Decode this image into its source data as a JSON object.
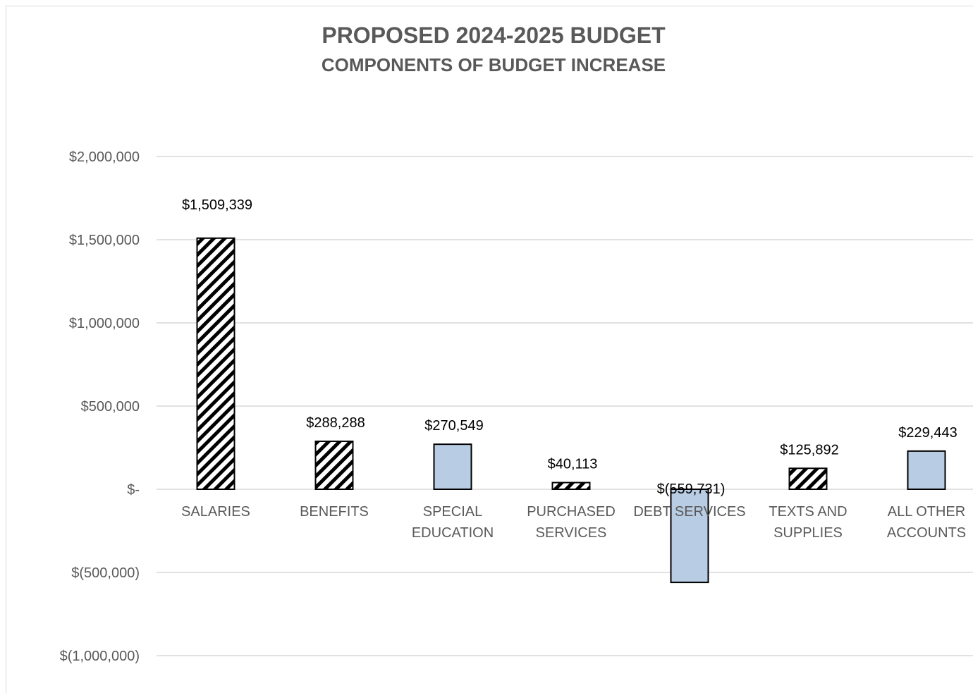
{
  "chart_data": {
    "type": "bar",
    "title": "PROPOSED 2024-2025 BUDGET",
    "subtitle": "COMPONENTS OF BUDGET INCREASE",
    "categories": [
      [
        "SALARIES"
      ],
      [
        "BENEFITS"
      ],
      [
        "SPECIAL",
        "EDUCATION"
      ],
      [
        "PURCHASED",
        "SERVICES"
      ],
      [
        "DEBT SERVICES"
      ],
      [
        "TEXTS AND",
        "SUPPLIES"
      ],
      [
        "ALL OTHER",
        "ACCOUNTS"
      ]
    ],
    "values": [
      1509339,
      288288,
      270549,
      40113,
      -559731,
      125892,
      229443
    ],
    "data_labels": [
      "$1,509,339",
      "$288,288",
      "$270,549",
      "$40,113",
      "$(559,731)",
      "$125,892",
      "$229,443"
    ],
    "fill_styles": [
      "hatched",
      "hatched",
      "solid",
      "hatched",
      "solid",
      "hatched",
      "solid"
    ],
    "y_ticks": [
      2000000,
      1500000,
      1000000,
      500000,
      0,
      -500000,
      -1000000
    ],
    "y_tick_labels": [
      "$2,000,000",
      "$1,500,000",
      "$1,000,000",
      "$500,000",
      "$-",
      "$(500,000)",
      "$(1,000,000)"
    ],
    "ylim": [
      -1000000,
      2000000
    ],
    "grid": true,
    "legend": "none",
    "colors": {
      "solid_fill": "#b8cce4",
      "hatch": "#000000",
      "grid": "#d9d9d9",
      "text": "#595959"
    }
  }
}
